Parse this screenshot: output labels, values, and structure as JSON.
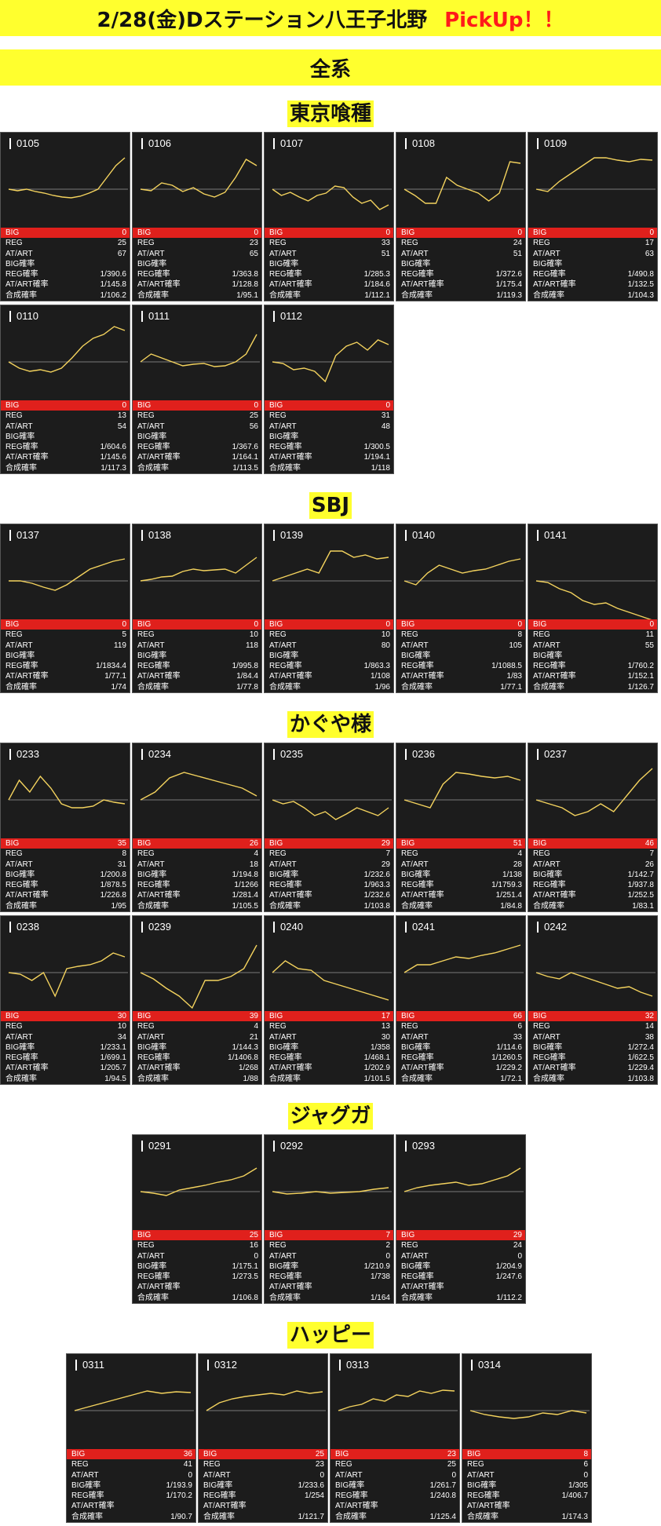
{
  "header": {
    "title": "2/28(金)Dステーション八王子北野",
    "pickup": "PickUp！！"
  },
  "subheader": "全系",
  "row_labels": [
    "BIG",
    "REG",
    "AT/ART",
    "BIG確率",
    "REG確率",
    "AT/ART確率",
    "合成確率"
  ],
  "colors": {
    "banner": "#ffff2e",
    "pickup": "#ff1a1a",
    "card_bg": "#1c1c1c",
    "big_bar": "#e0201c",
    "line": "#f4d35e",
    "baseline": "#9a9a9a"
  },
  "sections": [
    {
      "title": "東京喰種",
      "cards": [
        {
          "id": "0105",
          "big": "0",
          "reg": "25",
          "at": "67",
          "big_p": "",
          "reg_p": "1/390.6",
          "at_p": "1/145.8",
          "comb": "1/106.2"
        },
        {
          "id": "0106",
          "big": "0",
          "reg": "23",
          "at": "65",
          "big_p": "",
          "reg_p": "1/363.8",
          "at_p": "1/128.8",
          "comb": "1/95.1"
        },
        {
          "id": "0107",
          "big": "0",
          "reg": "33",
          "at": "51",
          "big_p": "",
          "reg_p": "1/285.3",
          "at_p": "1/184.6",
          "comb": "1/112.1"
        },
        {
          "id": "0108",
          "big": "0",
          "reg": "24",
          "at": "51",
          "big_p": "",
          "reg_p": "1/372.6",
          "at_p": "1/175.4",
          "comb": "1/119.3"
        },
        {
          "id": "0109",
          "big": "0",
          "reg": "17",
          "at": "63",
          "big_p": "",
          "reg_p": "1/490.8",
          "at_p": "1/132.5",
          "comb": "1/104.3"
        },
        {
          "id": "0110",
          "big": "0",
          "reg": "13",
          "at": "54",
          "big_p": "",
          "reg_p": "1/604.6",
          "at_p": "1/145.6",
          "comb": "1/117.3"
        },
        {
          "id": "0111",
          "big": "0",
          "reg": "25",
          "at": "56",
          "big_p": "",
          "reg_p": "1/367.6",
          "at_p": "1/164.1",
          "comb": "1/113.5"
        },
        {
          "id": "0112",
          "big": "0",
          "reg": "31",
          "at": "48",
          "big_p": "",
          "reg_p": "1/300.5",
          "at_p": "1/194.1",
          "comb": "1/118"
        }
      ]
    },
    {
      "title": "SBJ",
      "cards": [
        {
          "id": "0137",
          "big": "0",
          "reg": "5",
          "at": "119",
          "big_p": "",
          "reg_p": "1/1834.4",
          "at_p": "1/77.1",
          "comb": "1/74"
        },
        {
          "id": "0138",
          "big": "0",
          "reg": "10",
          "at": "118",
          "big_p": "",
          "reg_p": "1/995.8",
          "at_p": "1/84.4",
          "comb": "1/77.8"
        },
        {
          "id": "0139",
          "big": "0",
          "reg": "10",
          "at": "80",
          "big_p": "",
          "reg_p": "1/863.3",
          "at_p": "1/108",
          "comb": "1/96"
        },
        {
          "id": "0140",
          "big": "0",
          "reg": "8",
          "at": "105",
          "big_p": "",
          "reg_p": "1/1088.5",
          "at_p": "1/83",
          "comb": "1/77.1"
        },
        {
          "id": "0141",
          "big": "0",
          "reg": "11",
          "at": "55",
          "big_p": "",
          "reg_p": "1/760.2",
          "at_p": "1/152.1",
          "comb": "1/126.7"
        }
      ]
    },
    {
      "title": "かぐや様",
      "cards": [
        {
          "id": "0233",
          "big": "35",
          "reg": "8",
          "at": "31",
          "big_p": "1/200.8",
          "reg_p": "1/878.5",
          "at_p": "1/226.8",
          "comb": "1/95"
        },
        {
          "id": "0234",
          "big": "26",
          "reg": "4",
          "at": "18",
          "big_p": "1/194.8",
          "reg_p": "1/1266",
          "at_p": "1/281.4",
          "comb": "1/105.5"
        },
        {
          "id": "0235",
          "big": "29",
          "reg": "7",
          "at": "29",
          "big_p": "1/232.6",
          "reg_p": "1/963.3",
          "at_p": "1/232.6",
          "comb": "1/103.8"
        },
        {
          "id": "0236",
          "big": "51",
          "reg": "4",
          "at": "28",
          "big_p": "1/138",
          "reg_p": "1/1759.3",
          "at_p": "1/251.4",
          "comb": "1/84.8"
        },
        {
          "id": "0237",
          "big": "46",
          "reg": "7",
          "at": "26",
          "big_p": "1/142.7",
          "reg_p": "1/937.8",
          "at_p": "1/252.5",
          "comb": "1/83.1"
        },
        {
          "id": "0238",
          "big": "30",
          "reg": "10",
          "at": "34",
          "big_p": "1/233.1",
          "reg_p": "1/699.1",
          "at_p": "1/205.7",
          "comb": "1/94.5"
        },
        {
          "id": "0239",
          "big": "39",
          "reg": "4",
          "at": "21",
          "big_p": "1/144.3",
          "reg_p": "1/1406.8",
          "at_p": "1/268",
          "comb": "1/88"
        },
        {
          "id": "0240",
          "big": "17",
          "reg": "13",
          "at": "30",
          "big_p": "1/358",
          "reg_p": "1/468.1",
          "at_p": "1/202.9",
          "comb": "1/101.5"
        },
        {
          "id": "0241",
          "big": "66",
          "reg": "6",
          "at": "33",
          "big_p": "1/114.6",
          "reg_p": "1/1260.5",
          "at_p": "1/229.2",
          "comb": "1/72.1"
        },
        {
          "id": "0242",
          "big": "32",
          "reg": "14",
          "at": "38",
          "big_p": "1/272.4",
          "reg_p": "1/622.5",
          "at_p": "1/229.4",
          "comb": "1/103.8"
        }
      ]
    },
    {
      "title": "ジャグガ",
      "cards": [
        {
          "id": "0291",
          "big": "25",
          "reg": "16",
          "at": "0",
          "big_p": "1/175.1",
          "reg_p": "1/273.5",
          "at_p": "",
          "comb": "1/106.8"
        },
        {
          "id": "0292",
          "big": "7",
          "reg": "2",
          "at": "0",
          "big_p": "1/210.9",
          "reg_p": "1/738",
          "at_p": "",
          "comb": "1/164"
        },
        {
          "id": "0293",
          "big": "29",
          "reg": "24",
          "at": "0",
          "big_p": "1/204.9",
          "reg_p": "1/247.6",
          "at_p": "",
          "comb": "1/112.2"
        }
      ]
    },
    {
      "title": "ハッピー",
      "cards": [
        {
          "id": "0311",
          "big": "36",
          "reg": "41",
          "at": "0",
          "big_p": "1/193.9",
          "reg_p": "1/170.2",
          "at_p": "",
          "comb": "1/90.7"
        },
        {
          "id": "0312",
          "big": "25",
          "reg": "23",
          "at": "0",
          "big_p": "1/233.6",
          "reg_p": "1/254",
          "at_p": "",
          "comb": "1/121.7"
        },
        {
          "id": "0313",
          "big": "23",
          "reg": "25",
          "at": "0",
          "big_p": "1/261.7",
          "reg_p": "1/240.8",
          "at_p": "",
          "comb": "1/125.4"
        },
        {
          "id": "0314",
          "big": "8",
          "reg": "6",
          "at": "0",
          "big_p": "1/305",
          "reg_p": "1/406.7",
          "at_p": "",
          "comb": "1/174.3"
        }
      ]
    }
  ],
  "chart_data": {
    "type": "line",
    "note_units": "relative trend shape, baseline = 0",
    "series": [
      {
        "name": "0105",
        "values": [
          0,
          -2,
          0,
          -3,
          -5,
          -8,
          -10,
          -11,
          -9,
          -5,
          0,
          15,
          30,
          40
        ]
      },
      {
        "name": "0106",
        "values": [
          0,
          -2,
          8,
          5,
          -3,
          2,
          -6,
          -10,
          -4,
          15,
          38,
          30
        ]
      },
      {
        "name": "0107",
        "values": [
          0,
          -8,
          -4,
          -10,
          -15,
          -8,
          -5,
          4,
          2,
          -10,
          -18,
          -14,
          -26,
          -20
        ]
      },
      {
        "name": "0108",
        "values": [
          0,
          -8,
          -18,
          -18,
          15,
          5,
          0,
          -5,
          -15,
          -5,
          35,
          33
        ]
      },
      {
        "name": "0109",
        "values": [
          0,
          -3,
          10,
          20,
          30,
          40,
          40,
          37,
          35,
          38,
          37
        ]
      },
      {
        "name": "0110",
        "values": [
          0,
          -8,
          -12,
          -10,
          -13,
          -8,
          5,
          20,
          30,
          35,
          45,
          40
        ]
      },
      {
        "name": "0111",
        "values": [
          0,
          10,
          5,
          0,
          -5,
          -3,
          -2,
          -6,
          -5,
          0,
          10,
          35
        ]
      },
      {
        "name": "0112",
        "values": [
          0,
          -2,
          -10,
          -8,
          -12,
          -25,
          8,
          20,
          25,
          15,
          28,
          22
        ]
      },
      {
        "name": "0137",
        "values": [
          0,
          0,
          -3,
          -8,
          -12,
          -5,
          5,
          15,
          20,
          25,
          28
        ]
      },
      {
        "name": "0138",
        "values": [
          0,
          2,
          5,
          6,
          12,
          15,
          13,
          14,
          15,
          10,
          20,
          30
        ]
      },
      {
        "name": "0139",
        "values": [
          0,
          5,
          10,
          15,
          10,
          38,
          38,
          30,
          33,
          28,
          30
        ]
      },
      {
        "name": "0140",
        "values": [
          0,
          -5,
          10,
          20,
          15,
          10,
          13,
          15,
          20,
          25,
          28
        ]
      },
      {
        "name": "0141",
        "values": [
          0,
          -2,
          -10,
          -15,
          -25,
          -30,
          -28,
          -35,
          -40,
          -45,
          -50
        ]
      },
      {
        "name": "0233",
        "values": [
          0,
          25,
          10,
          30,
          15,
          -5,
          -10,
          -10,
          -8,
          0,
          -3,
          -5
        ]
      },
      {
        "name": "0234",
        "values": [
          0,
          10,
          28,
          35,
          30,
          25,
          20,
          15,
          5
        ]
      },
      {
        "name": "0235",
        "values": [
          0,
          -5,
          -2,
          -10,
          -20,
          -15,
          -25,
          -18,
          -10,
          -15,
          -20,
          -10
        ]
      },
      {
        "name": "0236",
        "values": [
          0,
          -5,
          -10,
          20,
          35,
          33,
          30,
          28,
          30,
          25
        ]
      },
      {
        "name": "0237",
        "values": [
          0,
          -5,
          -10,
          -20,
          -15,
          -5,
          -15,
          5,
          25,
          40
        ]
      },
      {
        "name": "0238",
        "values": [
          0,
          -2,
          -10,
          0,
          -30,
          5,
          8,
          10,
          15,
          25,
          20
        ]
      },
      {
        "name": "0239",
        "values": [
          0,
          -8,
          -20,
          -30,
          -45,
          -10,
          -10,
          -5,
          5,
          35
        ]
      },
      {
        "name": "0240",
        "values": [
          0,
          15,
          5,
          3,
          -10,
          -15,
          -20,
          -25,
          -30,
          -35
        ]
      },
      {
        "name": "0241",
        "values": [
          0,
          10,
          10,
          15,
          20,
          18,
          22,
          25,
          30,
          35
        ]
      },
      {
        "name": "0242",
        "values": [
          0,
          -5,
          -8,
          0,
          -5,
          -10,
          -15,
          -20,
          -18,
          -25,
          -30
        ]
      },
      {
        "name": "0291",
        "values": [
          0,
          -2,
          -5,
          2,
          5,
          8,
          12,
          15,
          20,
          30
        ]
      },
      {
        "name": "0292",
        "values": [
          0,
          -3,
          -2,
          0,
          -2,
          -1,
          0,
          3,
          5
        ]
      },
      {
        "name": "0293",
        "values": [
          0,
          5,
          8,
          10,
          12,
          8,
          10,
          15,
          20,
          30
        ]
      },
      {
        "name": "0311",
        "values": [
          0,
          5,
          10,
          15,
          20,
          25,
          22,
          24,
          23
        ]
      },
      {
        "name": "0312",
        "values": [
          0,
          10,
          15,
          18,
          20,
          22,
          20,
          25,
          22,
          24
        ]
      },
      {
        "name": "0313",
        "values": [
          0,
          5,
          8,
          15,
          12,
          20,
          18,
          25,
          22,
          26,
          25
        ]
      },
      {
        "name": "0314",
        "values": [
          0,
          -5,
          -8,
          -10,
          -8,
          -3,
          -5,
          0,
          -3
        ]
      }
    ]
  }
}
